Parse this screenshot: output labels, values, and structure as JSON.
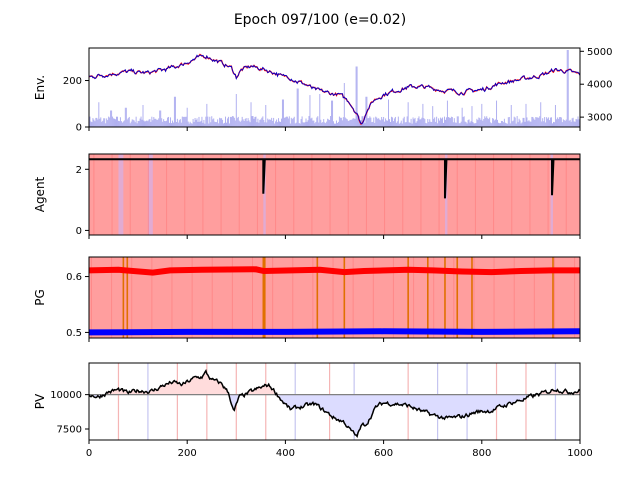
{
  "chart_data": {
    "type": "line",
    "title": "Epoch 097/100 (e=0.02)",
    "x_axis": {
      "range": [
        0,
        1000
      ],
      "ticks": [
        "0",
        "200",
        "400",
        "600",
        "800",
        "1000"
      ]
    },
    "panels": [
      {
        "id": "env",
        "ylabel": "Env.",
        "ylim_left": [
          0,
          340
        ],
        "yticks_left": [
          "0",
          "200"
        ],
        "ylim_right": [
          2700,
          5100
        ],
        "yticks_right": [
          "3000",
          "4000",
          "5000"
        ],
        "series": [
          {
            "kind": "price",
            "keypoints": [
              [
                0,
                215
              ],
              [
                40,
                228
              ],
              [
                80,
                238
              ],
              [
                120,
                232
              ],
              [
                150,
                245
              ],
              [
                180,
                262
              ],
              [
                200,
                278
              ],
              [
                225,
                300
              ],
              [
                240,
                305
              ],
              [
                260,
                285
              ],
              [
                290,
                255
              ],
              [
                300,
                215
              ],
              [
                310,
                245
              ],
              [
                330,
                262
              ],
              [
                355,
                248
              ],
              [
                380,
                232
              ],
              [
                395,
                215
              ],
              [
                405,
                220
              ],
              [
                420,
                200
              ],
              [
                440,
                185
              ],
              [
                460,
                160
              ],
              [
                490,
                145
              ],
              [
                510,
                138
              ],
              [
                530,
                110
              ],
              [
                545,
                60
              ],
              [
                555,
                8
              ],
              [
                565,
                70
              ],
              [
                580,
                115
              ],
              [
                600,
                140
              ],
              [
                630,
                160
              ],
              [
                660,
                175
              ],
              [
                690,
                170
              ],
              [
                720,
                158
              ],
              [
                760,
                150
              ],
              [
                800,
                160
              ],
              [
                840,
                190
              ],
              [
                880,
                205
              ],
              [
                920,
                222
              ],
              [
                950,
                245
              ],
              [
                975,
                240
              ],
              [
                1000,
                225
              ]
            ]
          },
          {
            "kind": "volume",
            "color": "#b0b0f0",
            "spikes": [
              [
                20,
                45
              ],
              [
                45,
                30
              ],
              [
                75,
                35
              ],
              [
                110,
                40
              ],
              [
                145,
                30
              ],
              [
                175,
                55
              ],
              [
                200,
                35
              ],
              [
                240,
                42
              ],
              [
                300,
                60
              ],
              [
                330,
                45
              ],
              [
                360,
                40
              ],
              [
                395,
                50
              ],
              [
                425,
                70
              ],
              [
                450,
                58
              ],
              [
                470,
                60
              ],
              [
                495,
                48
              ],
              [
                520,
                80
              ],
              [
                545,
                110
              ],
              [
                565,
                55
              ],
              [
                610,
                50
              ],
              [
                650,
                45
              ],
              [
                680,
                42
              ],
              [
                700,
                38
              ],
              [
                730,
                48
              ],
              [
                760,
                35
              ],
              [
                780,
                38
              ],
              [
                800,
                42
              ],
              [
                830,
                48
              ],
              [
                860,
                40
              ],
              [
                890,
                42
              ],
              [
                920,
                45
              ],
              [
                950,
                40
              ],
              [
                975,
                140
              ]
            ]
          }
        ]
      },
      {
        "id": "agent",
        "ylabel": "Agent",
        "ylim": [
          -0.15,
          2.5
        ],
        "yticks": [
          "0",
          "2"
        ],
        "background_color": "#ff9e9e",
        "series": [
          {
            "kind": "position",
            "value": 2.33,
            "dips": [
              [
                355,
                1.2
              ],
              [
                725,
                1.05
              ],
              [
                943,
                1.15
              ]
            ]
          }
        ],
        "light_bands": [
          60,
          70,
          120,
          130,
          355,
          360,
          725,
          730,
          940,
          945
        ]
      },
      {
        "id": "pg",
        "ylabel": "PG",
        "ylim": [
          0.49,
          0.635
        ],
        "yticks": [
          "0.5",
          "0.6"
        ],
        "background_color": "#ff9e9e",
        "series": [
          {
            "name": "",
            "color": "#ff0000",
            "values": [
              [
                0,
                0.611
              ],
              [
                60,
                0.612
              ],
              [
                130,
                0.607
              ],
              [
                165,
                0.611
              ],
              [
                230,
                0.612
              ],
              [
                340,
                0.613
              ],
              [
                356,
                0.61
              ],
              [
                470,
                0.612
              ],
              [
                520,
                0.608
              ],
              [
                560,
                0.61
              ],
              [
                650,
                0.612
              ],
              [
                700,
                0.611
              ],
              [
                760,
                0.609
              ],
              [
                820,
                0.608
              ],
              [
                880,
                0.61
              ],
              [
                940,
                0.611
              ],
              [
                1000,
                0.611
              ]
            ]
          },
          {
            "name": "",
            "color": "#0000ff",
            "values": [
              [
                0,
                0.5
              ],
              [
                200,
                0.501
              ],
              [
                400,
                0.501
              ],
              [
                600,
                0.502
              ],
              [
                800,
                0.501
              ],
              [
                1000,
                0.502
              ]
            ]
          }
        ],
        "orange_markers": [
          70,
          78,
          355,
          358,
          465,
          520,
          650,
          690,
          725,
          750,
          780,
          945
        ]
      },
      {
        "id": "pv",
        "ylabel": "PV",
        "ylim": [
          6700,
          12300
        ],
        "yticks": [
          "7500",
          "10000"
        ],
        "baseline": 10000,
        "series": [
          {
            "kind": "portfolio",
            "keypoints": [
              [
                0,
                10000
              ],
              [
                20,
                9850
              ],
              [
                40,
                10200
              ],
              [
                60,
                10350
              ],
              [
                80,
                10100
              ],
              [
                100,
                10300
              ],
              [
                130,
                10250
              ],
              [
                150,
                10650
              ],
              [
                170,
                10900
              ],
              [
                190,
                10700
              ],
              [
                215,
                11200
              ],
              [
                230,
                11300
              ],
              [
                238,
                11600
              ],
              [
                250,
                11050
              ],
              [
                270,
                10800
              ],
              [
                285,
                10100
              ],
              [
                295,
                8700
              ],
              [
                305,
                9750
              ],
              [
                330,
                10200
              ],
              [
                350,
                10500
              ],
              [
                365,
                10700
              ],
              [
                375,
                10400
              ],
              [
                395,
                9500
              ],
              [
                410,
                8900
              ],
              [
                430,
                9100
              ],
              [
                460,
                9300
              ],
              [
                480,
                8800
              ],
              [
                500,
                8300
              ],
              [
                520,
                8000
              ],
              [
                535,
                7300
              ],
              [
                545,
                6950
              ],
              [
                555,
                7700
              ],
              [
                565,
                7900
              ],
              [
                585,
                9100
              ],
              [
                600,
                9400
              ],
              [
                625,
                9350
              ],
              [
                650,
                9200
              ],
              [
                680,
                8750
              ],
              [
                700,
                8500
              ],
              [
                730,
                8250
              ],
              [
                760,
                8400
              ],
              [
                790,
                8750
              ],
              [
                820,
                8850
              ],
              [
                860,
                9400
              ],
              [
                880,
                9600
              ],
              [
                910,
                9950
              ],
              [
                935,
                10200
              ],
              [
                950,
                10450
              ],
              [
                975,
                10200
              ],
              [
                1000,
                10300
              ]
            ]
          }
        ],
        "vlines_red": [
          60,
          180,
          240,
          300,
          360,
          490,
          650,
          830,
          890
        ],
        "vlines_blue": [
          120,
          420,
          540,
          710,
          770,
          950
        ]
      }
    ]
  }
}
